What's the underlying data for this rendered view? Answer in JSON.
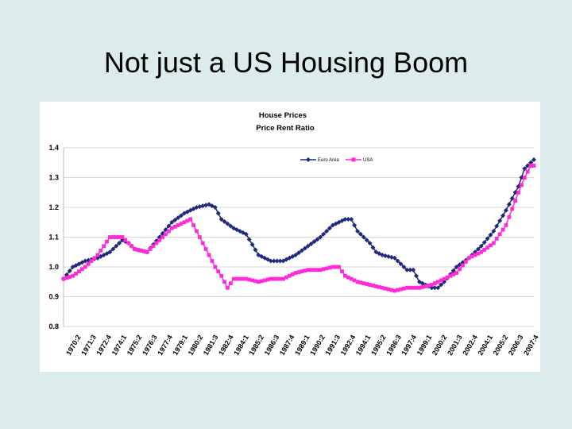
{
  "slide": {
    "title": "Not just a US Housing Boom"
  },
  "colors": {
    "euro": "#1f2a7a",
    "usa": "#ff2bd8",
    "grid": "#d8d8d8",
    "background": "#dcecec"
  },
  "chart_data": {
    "type": "line",
    "title": "House Prices",
    "subtitle": "Price Rent Ratio",
    "xlabel": "",
    "ylabel": "",
    "ylim": [
      0.8,
      1.4
    ],
    "yticks": [
      "0.8",
      "0.9",
      "1.0",
      "1.1",
      "1.2",
      "1.3",
      "1.4"
    ],
    "grid": true,
    "legend_position": "top-right",
    "x_range": [
      1970.25,
      2008.25
    ],
    "x_tick_labels": [
      "1970:2",
      "1971:3",
      "1972:4",
      "1974:1",
      "1975:2",
      "1976:3",
      "1977:4",
      "1979:1",
      "1980:2",
      "1981:3",
      "1982:4",
      "1984:1",
      "1985:2",
      "1986:3",
      "1987:4",
      "1989:1",
      "1990:2",
      "1991:3",
      "1992:4",
      "1994:1",
      "1995:2",
      "1996:3",
      "1997:4",
      "1999:1",
      "2000:2",
      "2001:3",
      "2002:4",
      "2004:1",
      "2005:2",
      "2006:3",
      "2007:4"
    ],
    "series": [
      {
        "name": "Euro Area",
        "marker": "diamond",
        "points": [
          [
            1970.25,
            0.96
          ],
          [
            1971.0,
            1.0
          ],
          [
            1972.0,
            1.02
          ],
          [
            1973.0,
            1.03
          ],
          [
            1974.0,
            1.05
          ],
          [
            1975.0,
            1.09
          ],
          [
            1975.5,
            1.08
          ],
          [
            1976.0,
            1.06
          ],
          [
            1977.0,
            1.05
          ],
          [
            1978.0,
            1.1
          ],
          [
            1979.0,
            1.15
          ],
          [
            1980.0,
            1.18
          ],
          [
            1981.0,
            1.2
          ],
          [
            1982.0,
            1.21
          ],
          [
            1982.5,
            1.2
          ],
          [
            1983.0,
            1.16
          ],
          [
            1984.0,
            1.13
          ],
          [
            1985.0,
            1.11
          ],
          [
            1986.0,
            1.04
          ],
          [
            1987.0,
            1.02
          ],
          [
            1988.0,
            1.02
          ],
          [
            1989.0,
            1.04
          ],
          [
            1990.0,
            1.07
          ],
          [
            1991.0,
            1.1
          ],
          [
            1992.0,
            1.14
          ],
          [
            1993.0,
            1.16
          ],
          [
            1993.5,
            1.16
          ],
          [
            1994.0,
            1.12
          ],
          [
            1995.0,
            1.08
          ],
          [
            1995.5,
            1.05
          ],
          [
            1996.0,
            1.04
          ],
          [
            1997.0,
            1.03
          ],
          [
            1998.0,
            0.99
          ],
          [
            1998.5,
            0.99
          ],
          [
            1999.0,
            0.95
          ],
          [
            2000.0,
            0.93
          ],
          [
            2000.5,
            0.93
          ],
          [
            2001.0,
            0.95
          ],
          [
            2002.0,
            1.0
          ],
          [
            2003.0,
            1.03
          ],
          [
            2004.0,
            1.07
          ],
          [
            2005.0,
            1.12
          ],
          [
            2006.0,
            1.19
          ],
          [
            2007.0,
            1.27
          ],
          [
            2007.5,
            1.33
          ],
          [
            2008.0,
            1.35
          ],
          [
            2008.25,
            1.36
          ]
        ]
      },
      {
        "name": "USA",
        "marker": "square",
        "points": [
          [
            1970.25,
            0.96
          ],
          [
            1971.0,
            0.97
          ],
          [
            1972.0,
            1.0
          ],
          [
            1973.0,
            1.04
          ],
          [
            1974.0,
            1.1
          ],
          [
            1975.0,
            1.1
          ],
          [
            1975.5,
            1.08
          ],
          [
            1976.0,
            1.06
          ],
          [
            1977.0,
            1.05
          ],
          [
            1978.0,
            1.09
          ],
          [
            1979.0,
            1.13
          ],
          [
            1980.0,
            1.15
          ],
          [
            1980.5,
            1.16
          ],
          [
            1981.0,
            1.12
          ],
          [
            1982.0,
            1.04
          ],
          [
            1982.5,
            1.0
          ],
          [
            1983.0,
            0.97
          ],
          [
            1983.5,
            0.93
          ],
          [
            1984.0,
            0.96
          ],
          [
            1985.0,
            0.96
          ],
          [
            1986.0,
            0.95
          ],
          [
            1987.0,
            0.96
          ],
          [
            1988.0,
            0.96
          ],
          [
            1989.0,
            0.98
          ],
          [
            1990.0,
            0.99
          ],
          [
            1991.0,
            0.99
          ],
          [
            1992.0,
            1.0
          ],
          [
            1992.5,
            1.0
          ],
          [
            1993.0,
            0.97
          ],
          [
            1994.0,
            0.95
          ],
          [
            1995.0,
            0.94
          ],
          [
            1996.0,
            0.93
          ],
          [
            1997.0,
            0.92
          ],
          [
            1998.0,
            0.93
          ],
          [
            1999.0,
            0.93
          ],
          [
            2000.0,
            0.94
          ],
          [
            2001.0,
            0.96
          ],
          [
            2002.0,
            0.98
          ],
          [
            2003.0,
            1.03
          ],
          [
            2004.0,
            1.05
          ],
          [
            2005.0,
            1.08
          ],
          [
            2006.0,
            1.14
          ],
          [
            2007.0,
            1.25
          ],
          [
            2007.5,
            1.3
          ],
          [
            2008.0,
            1.34
          ],
          [
            2008.25,
            1.34
          ]
        ]
      }
    ]
  }
}
